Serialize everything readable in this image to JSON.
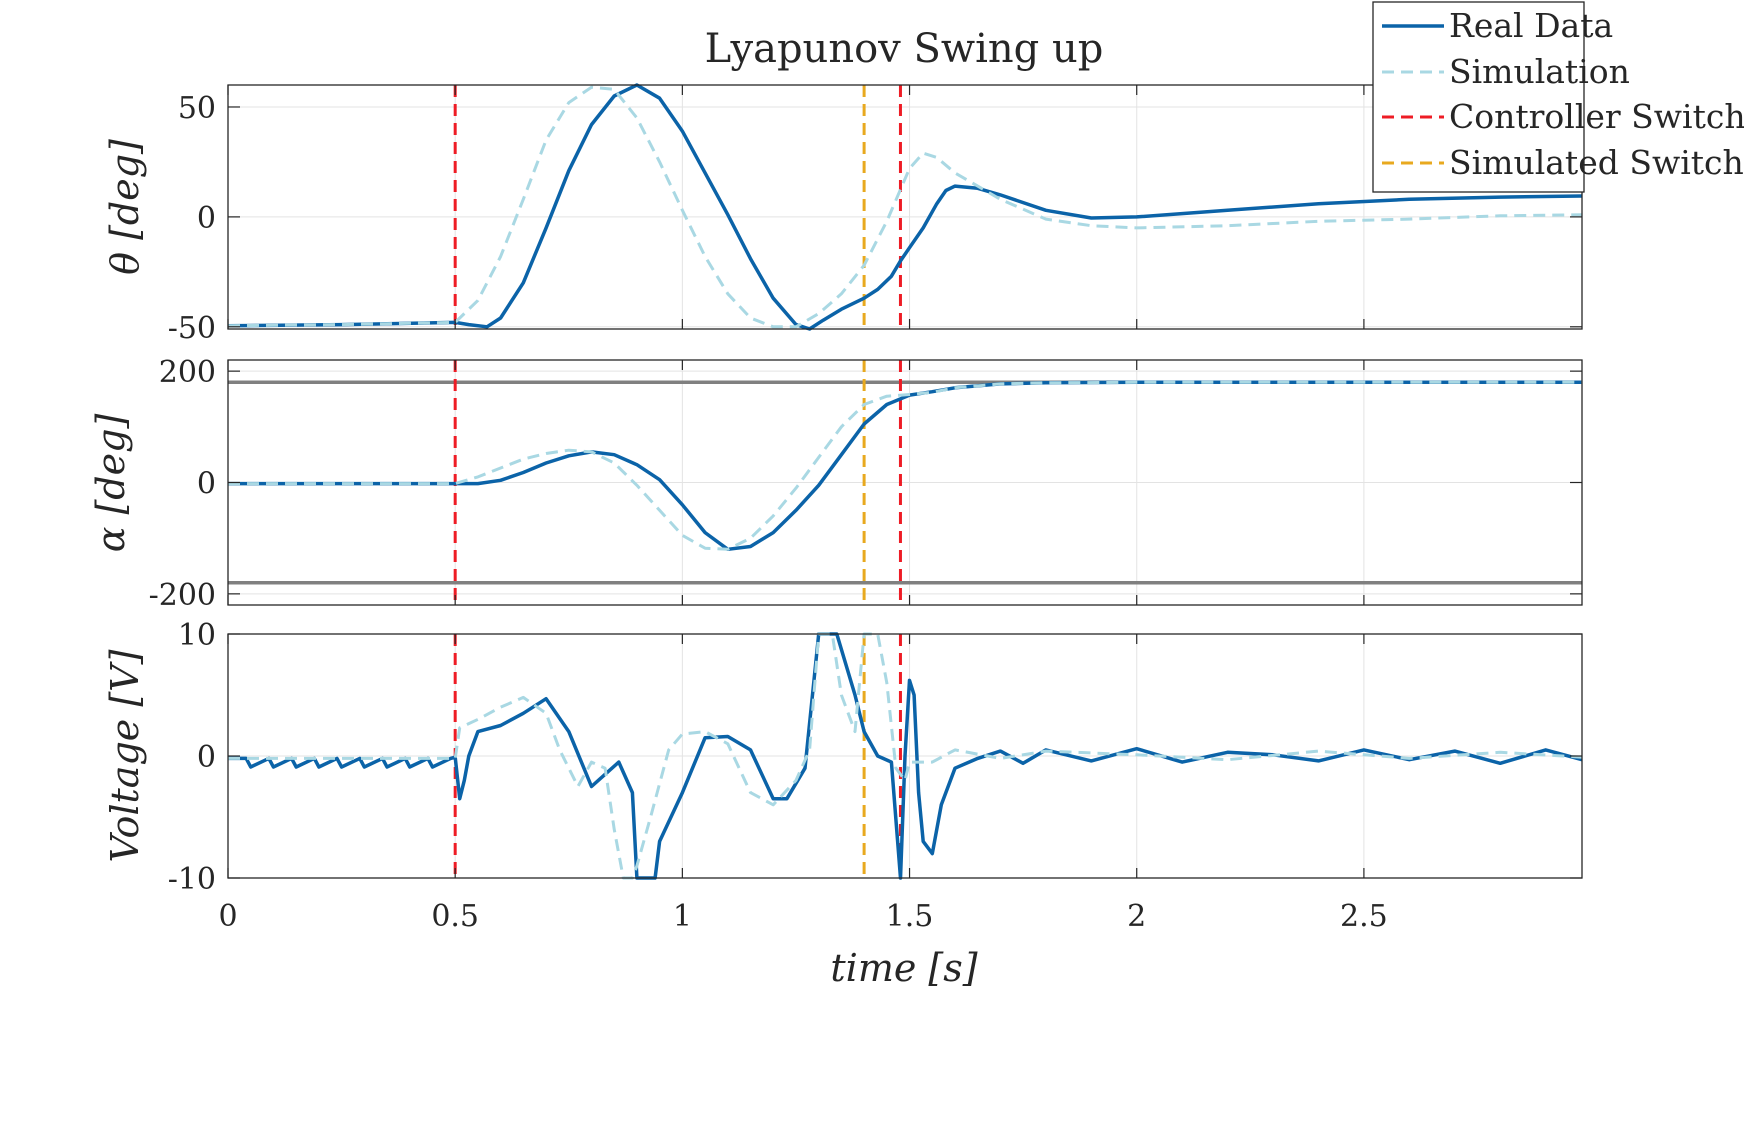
{
  "chart_data": {
    "type": "line",
    "title": "Lyapunov Swing up",
    "xlabel": "time [s]",
    "xlim": [
      0,
      2.98
    ],
    "x_ticks": [
      0,
      0.5,
      1,
      1.5,
      2,
      2.5
    ],
    "x_tick_labels": [
      "0",
      "0.5",
      "1",
      "1.5",
      "2",
      "2.5"
    ],
    "grid": true,
    "legend": {
      "position": "top-right",
      "entries": [
        {
          "label": "Real Data",
          "color": "#0b63a8",
          "style": "solid"
        },
        {
          "label": "Simulation",
          "color": "#a9d8e3",
          "style": "dashed"
        },
        {
          "label": "Controller Switch",
          "color": "#ee1c25",
          "style": "dashed"
        },
        {
          "label": "Simulated Switch",
          "color": "#e8a91f",
          "style": "dashed"
        }
      ]
    },
    "vertical_lines": [
      {
        "x": 0.5,
        "series": "Controller Switch"
      },
      {
        "x": 1.48,
        "series": "Controller Switch"
      },
      {
        "x": 1.4,
        "series": "Simulated Switch"
      }
    ],
    "subplots": [
      {
        "id": "theta",
        "ylabel": "θ [deg]",
        "ylim": [
          -51,
          60
        ],
        "y_ticks": [
          50,
          0,
          -50
        ],
        "y_tick_labels": [
          "50",
          "0",
          "-50"
        ],
        "series": [
          {
            "name": "Real Data",
            "x": [
              0,
              0.25,
              0.5,
              0.53,
              0.57,
              0.6,
              0.65,
              0.7,
              0.75,
              0.8,
              0.85,
              0.9,
              0.95,
              1.0,
              1.05,
              1.1,
              1.15,
              1.2,
              1.25,
              1.28,
              1.31,
              1.35,
              1.4,
              1.43,
              1.46,
              1.48,
              1.5,
              1.53,
              1.56,
              1.58,
              1.6,
              1.65,
              1.7,
              1.8,
              1.9,
              2.0,
              2.2,
              2.4,
              2.6,
              2.8,
              2.98
            ],
            "y": [
              -49.5,
              -49,
              -48,
              -49,
              -50,
              -46,
              -30,
              -5,
              21,
              42,
              55,
              60,
              54,
              39,
              20,
              1,
              -19,
              -37,
              -49,
              -51,
              -47,
              -42,
              -37,
              -33,
              -27,
              -20,
              -14,
              -5,
              6,
              12,
              14,
              13,
              10,
              3,
              -0.5,
              0,
              3,
              6,
              8,
              9,
              9.5
            ]
          },
          {
            "name": "Simulation",
            "x": [
              0,
              0.25,
              0.5,
              0.55,
              0.6,
              0.65,
              0.7,
              0.75,
              0.8,
              0.85,
              0.9,
              0.95,
              1.0,
              1.05,
              1.1,
              1.15,
              1.2,
              1.25,
              1.3,
              1.35,
              1.4,
              1.45,
              1.5,
              1.53,
              1.56,
              1.6,
              1.7,
              1.8,
              1.9,
              2.0,
              2.2,
              2.4,
              2.6,
              2.8,
              2.98
            ],
            "y": [
              -49.5,
              -49,
              -48,
              -38,
              -18,
              8,
              35,
              52,
              59,
              58,
              45,
              25,
              3,
              -18,
              -35,
              -46,
              -50,
              -50,
              -44,
              -35,
              -22,
              -2,
              22,
              29,
              27,
              20,
              8,
              -1,
              -4,
              -5,
              -4,
              -2,
              -1,
              0.5,
              1
            ]
          }
        ]
      },
      {
        "id": "alpha",
        "ylabel": "α [deg]",
        "ylim": [
          -220,
          220
        ],
        "y_ticks": [
          200,
          0,
          -200
        ],
        "y_tick_labels": [
          "200",
          "0",
          "-200"
        ],
        "reference_lines": [
          180,
          -180
        ],
        "series": [
          {
            "name": "Real Data",
            "x": [
              0,
              0.5,
              0.55,
              0.6,
              0.65,
              0.7,
              0.75,
              0.8,
              0.85,
              0.9,
              0.95,
              1.0,
              1.05,
              1.1,
              1.15,
              1.2,
              1.25,
              1.3,
              1.35,
              1.4,
              1.45,
              1.5,
              1.55,
              1.6,
              1.7,
              1.8,
              2.0,
              2.5,
              2.98
            ],
            "y": [
              -2,
              -2,
              -2,
              4,
              18,
              35,
              48,
              55,
              50,
              32,
              5,
              -40,
              -90,
              -120,
              -115,
              -90,
              -50,
              -5,
              50,
              105,
              140,
              157,
              163,
              170,
              177,
              179,
              180,
              180,
              180
            ]
          },
          {
            "name": "Simulation",
            "x": [
              0,
              0.5,
              0.55,
              0.6,
              0.65,
              0.7,
              0.75,
              0.8,
              0.85,
              0.9,
              0.95,
              1.0,
              1.05,
              1.1,
              1.15,
              1.2,
              1.25,
              1.3,
              1.35,
              1.4,
              1.45,
              1.5,
              1.55,
              1.6,
              1.7,
              1.8,
              2.0,
              2.5,
              2.98
            ],
            "y": [
              -2,
              -2,
              10,
              26,
              42,
              52,
              58,
              55,
              35,
              -5,
              -50,
              -95,
              -118,
              -120,
              -100,
              -60,
              -10,
              45,
              100,
              140,
              155,
              158,
              162,
              170,
              177,
              179,
              180,
              180,
              180
            ]
          }
        ]
      },
      {
        "id": "voltage",
        "ylabel": "Voltage [V]",
        "ylim": [
          -10,
          10
        ],
        "y_ticks": [
          10,
          0,
          -10
        ],
        "y_tick_labels": [
          "10",
          "0",
          "-10"
        ],
        "series": [
          {
            "name": "Real Data",
            "x": [
              0,
              0.04,
              0.05,
              0.09,
              0.1,
              0.14,
              0.15,
              0.19,
              0.2,
              0.24,
              0.25,
              0.29,
              0.3,
              0.34,
              0.35,
              0.39,
              0.4,
              0.44,
              0.45,
              0.49,
              0.5,
              0.51,
              0.52,
              0.53,
              0.55,
              0.6,
              0.65,
              0.7,
              0.75,
              0.8,
              0.83,
              0.86,
              0.89,
              0.9,
              0.94,
              0.95,
              1.0,
              1.05,
              1.1,
              1.15,
              1.2,
              1.23,
              1.27,
              1.3,
              1.33,
              1.34,
              1.38,
              1.4,
              1.43,
              1.46,
              1.48,
              1.49,
              1.5,
              1.51,
              1.52,
              1.53,
              1.55,
              1.57,
              1.6,
              1.65,
              1.7,
              1.75,
              1.8,
              1.9,
              2.0,
              2.1,
              2.2,
              2.3,
              2.4,
              2.5,
              2.6,
              2.7,
              2.8,
              2.9,
              2.98
            ],
            "y": [
              -0.2,
              -0.2,
              -0.9,
              -0.2,
              -0.9,
              -0.2,
              -0.9,
              -0.2,
              -0.9,
              -0.2,
              -0.9,
              -0.2,
              -0.9,
              -0.2,
              -0.9,
              -0.2,
              -0.9,
              -0.2,
              -0.9,
              -0.2,
              -0.1,
              -3.5,
              -2,
              0,
              2,
              2.5,
              3.5,
              4.7,
              2,
              -2.5,
              -1.5,
              -0.5,
              -3,
              -10,
              -10,
              -7,
              -3,
              1.5,
              1.6,
              0.5,
              -3.5,
              -3.5,
              -1,
              10,
              10,
              10,
              5,
              2,
              0,
              -0.5,
              -10,
              0,
              6.2,
              5,
              -3,
              -7,
              -8,
              -4,
              -1,
              -0.2,
              0.4,
              -0.6,
              0.5,
              -0.4,
              0.6,
              -0.5,
              0.3,
              0.1,
              -0.4,
              0.5,
              -0.3,
              0.4,
              -0.6,
              0.5,
              -0.3
            ]
          },
          {
            "name": "Simulation",
            "x": [
              0,
              0.5,
              0.51,
              0.55,
              0.6,
              0.65,
              0.7,
              0.73,
              0.77,
              0.8,
              0.83,
              0.85,
              0.87,
              0.89,
              0.9,
              0.93,
              0.97,
              1.0,
              1.05,
              1.1,
              1.15,
              1.2,
              1.25,
              1.28,
              1.3,
              1.33,
              1.35,
              1.38,
              1.4,
              1.43,
              1.45,
              1.47,
              1.49,
              1.5,
              1.55,
              1.6,
              1.7,
              1.8,
              2.0,
              2.2,
              2.4,
              2.6,
              2.8,
              2.98
            ],
            "y": [
              -0.2,
              -0.2,
              2.3,
              3,
              4,
              4.8,
              3.5,
              0.5,
              -2.5,
              -0.5,
              -1,
              -6,
              -10,
              -10,
              -9,
              -5,
              0.5,
              1.8,
              2,
              1,
              -3,
              -4,
              -2,
              0.5,
              10,
              10,
              5,
              2,
              10,
              10,
              6,
              -1,
              -2,
              -0.5,
              -0.5,
              0.5,
              -0.2,
              0.4,
              0.1,
              -0.3,
              0.4,
              -0.2,
              0.3,
              -0.1
            ]
          }
        ]
      }
    ]
  }
}
